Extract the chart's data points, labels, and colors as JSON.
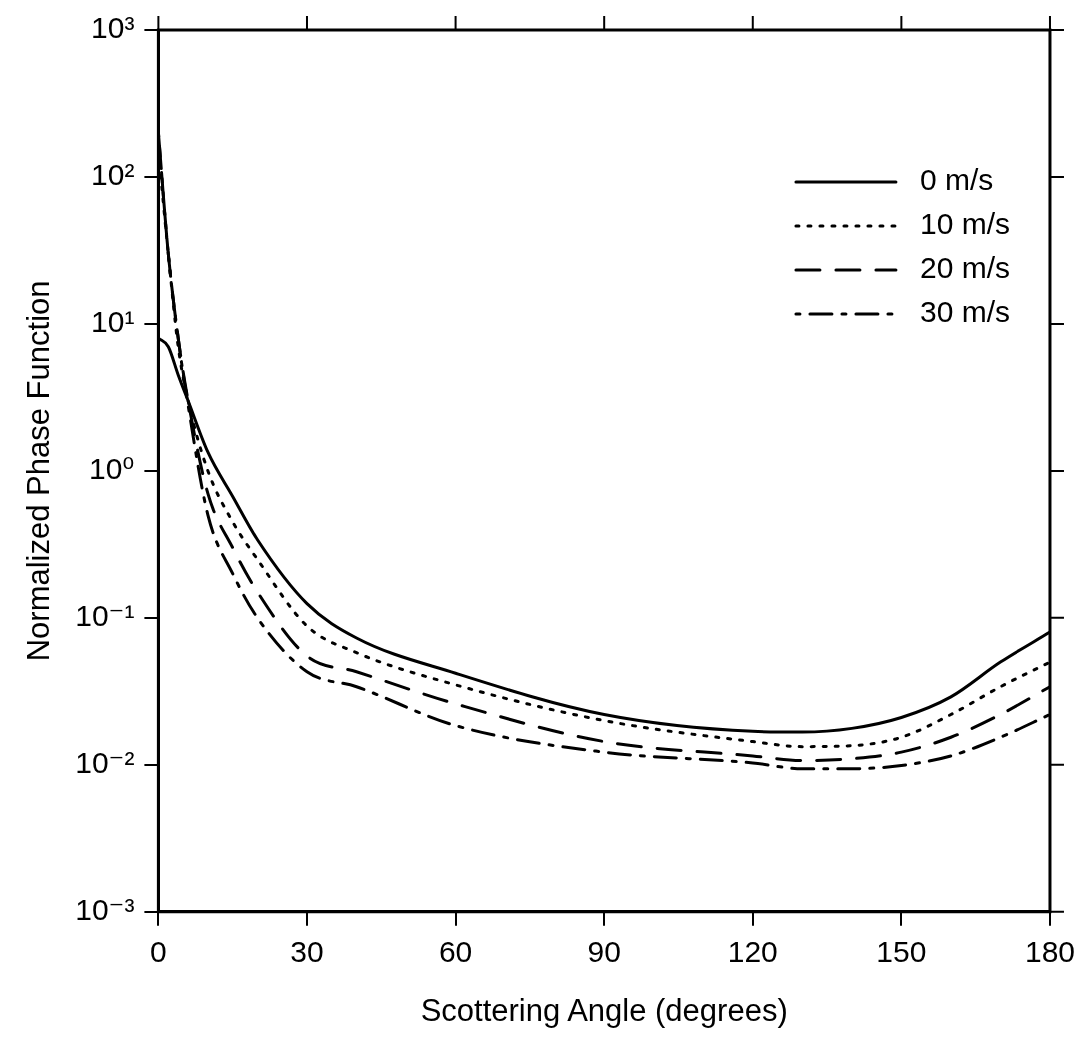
{
  "chart_data": {
    "type": "line",
    "xlabel": "Scottering Angle (degrees)",
    "ylabel": "Normalized Phase Function",
    "xlim": [
      0,
      180
    ],
    "xticks": [
      0,
      30,
      60,
      90,
      120,
      150,
      180
    ],
    "ylim": [
      0.001,
      1000
    ],
    "yticks": [
      {
        "value": 0.001,
        "label": "10⁻³"
      },
      {
        "value": 0.01,
        "label": "10⁻²"
      },
      {
        "value": 0.1,
        "label": "10⁻¹"
      },
      {
        "value": 1,
        "label": "10⁰"
      },
      {
        "value": 10,
        "label": "10¹"
      },
      {
        "value": 100,
        "label": "10²"
      },
      {
        "value": 1000,
        "label": "10³"
      }
    ],
    "log": "y",
    "grid": false,
    "legend": "top right",
    "marker": "none",
    "x": [
      0,
      2,
      4,
      6,
      10,
      15,
      20,
      30,
      40,
      60,
      90,
      120,
      130,
      140,
      150,
      160,
      170,
      180
    ],
    "series": [
      {
        "name": "0 m/s",
        "color": "#000000",
        "line_style": "solid",
        "values": [
          8,
          7,
          4.5,
          3,
          1.34,
          0.67,
          0.34,
          0.125,
          0.073,
          0.042,
          0.022,
          0.0169,
          0.0167,
          0.0177,
          0.021,
          0.029,
          0.05,
          0.08
        ]
      },
      {
        "name": "10 m/s",
        "color": "#000000",
        "line_style": "dotted",
        "values": [
          150,
          30,
          7,
          3,
          1.0,
          0.45,
          0.25,
          0.088,
          0.058,
          0.035,
          0.02,
          0.0144,
          0.0133,
          0.0135,
          0.0154,
          0.022,
          0.034,
          0.05
        ]
      },
      {
        "name": "20 m/s",
        "color": "#000000",
        "line_style": "dashed",
        "values": [
          200,
          30,
          8,
          3,
          0.7,
          0.3,
          0.15,
          0.055,
          0.043,
          0.026,
          0.0144,
          0.0115,
          0.0107,
          0.011,
          0.0122,
          0.0154,
          0.022,
          0.034
        ]
      },
      {
        "name": "30 m/s",
        "color": "#000000",
        "line_style": "dashdot",
        "values": [
          200,
          30,
          8,
          2.8,
          0.5,
          0.2,
          0.1,
          0.043,
          0.034,
          0.0185,
          0.0122,
          0.0103,
          0.0094,
          0.0094,
          0.0099,
          0.0115,
          0.0154,
          0.022
        ]
      }
    ]
  }
}
